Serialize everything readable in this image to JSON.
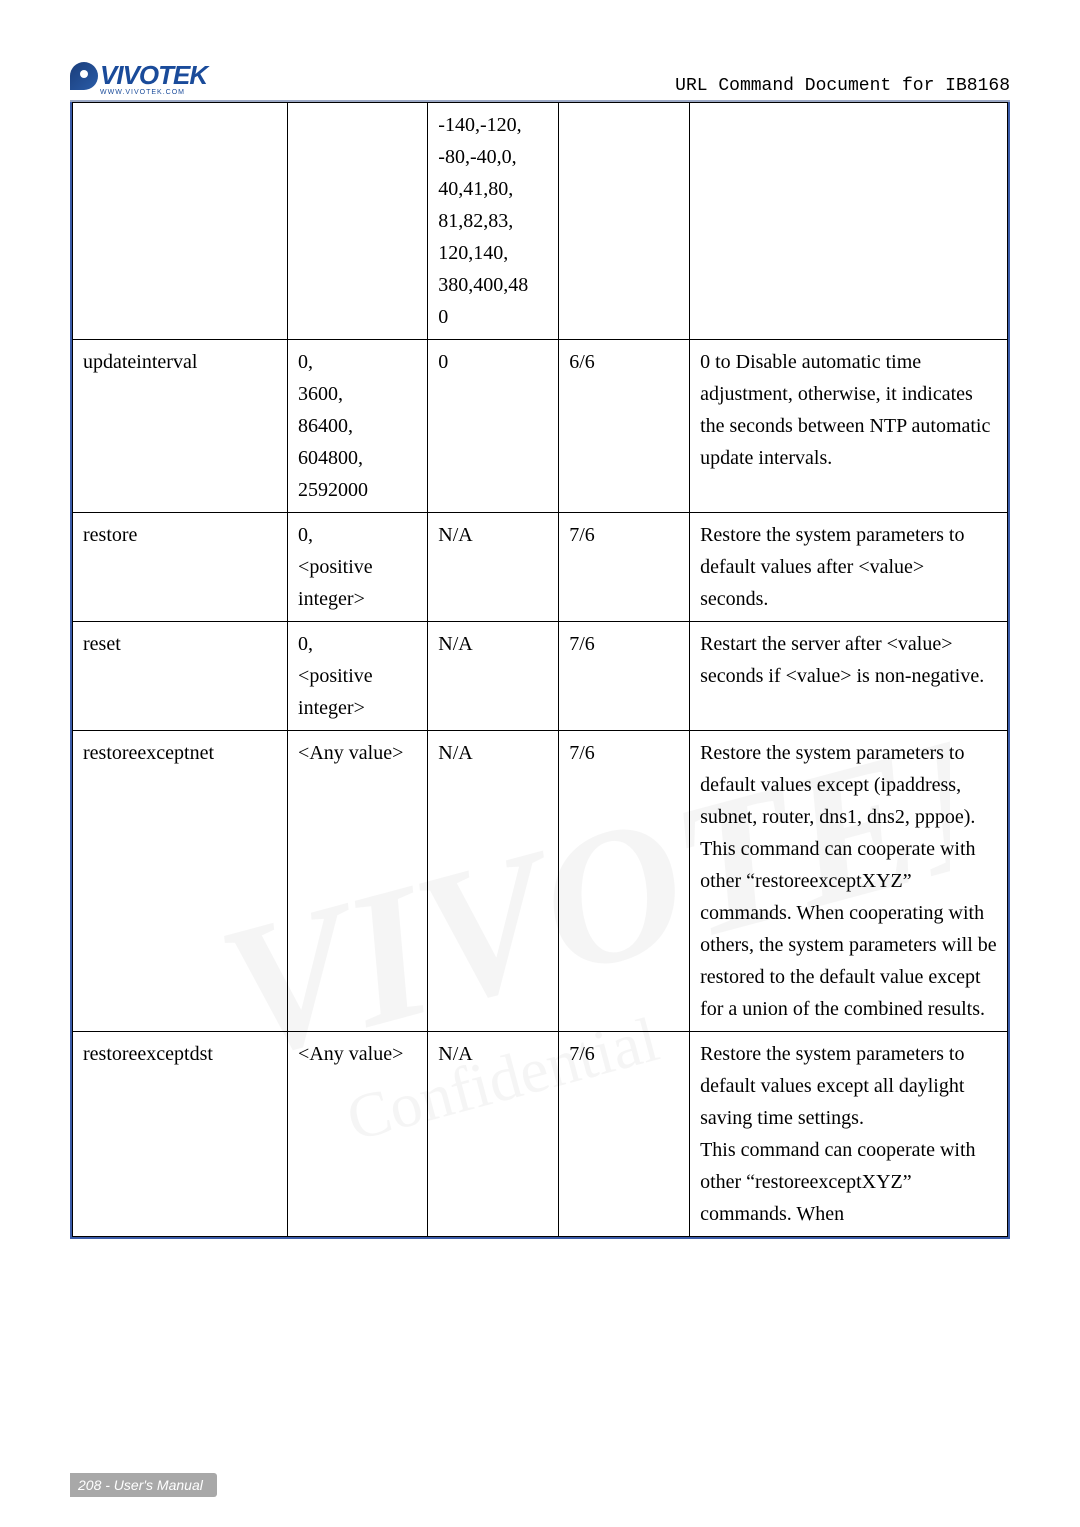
{
  "header": {
    "logo_text": "VIVOTEK",
    "logo_sub": "WWW.VIVOTEK.COM",
    "title": "URL Command Document for IB8168"
  },
  "rows": [
    {
      "name": "",
      "value": "",
      "default": "-140,-120,\n-80,-40,0,\n40,41,80,\n81,82,83,\n120,140,\n380,400,48\n0",
      "security": "",
      "desc": ""
    },
    {
      "name": "updateinterval",
      "value": "0,\n3600,\n86400,\n604800,\n2592000",
      "default": "0",
      "security": "6/6",
      "desc": "0 to Disable automatic time adjustment, otherwise, it indicates the seconds between NTP automatic update intervals."
    },
    {
      "name": "restore",
      "value": "0,\n<positive integer>",
      "default": "N/A",
      "security": "7/6",
      "desc": "Restore the system parameters to default values after <value> seconds."
    },
    {
      "name": "reset",
      "value": "0,\n<positive integer>",
      "default": "N/A",
      "security": "7/6",
      "desc": "Restart the server after <value> seconds if <value> is non-negative."
    },
    {
      "name": "restoreexceptnet",
      "value": "<Any value>",
      "default": "N/A",
      "security": "7/6",
      "desc": "Restore the system parameters to default values except (ipaddress, subnet, router, dns1, dns2, pppoe). This command can cooperate with other “restoreexceptXYZ” commands. When cooperating with others, the system parameters will be restored to the default value except for a union of the combined results."
    },
    {
      "name": "restoreexceptdst",
      "value": "<Any value>",
      "default": "N/A",
      "security": "7/6",
      "desc": "Restore the system parameters to default values except all daylight saving time settings.\nThis command can cooperate with other “restoreexceptXYZ” commands. When"
    }
  ],
  "footer": "208 - User's Manual",
  "colors": {
    "border_outer": "#3a5ba8",
    "border_inner": "#000000",
    "header_line": "#9ba8c4",
    "logo": "#1a4b9a",
    "footer_bg": "#a8a8a8",
    "text": "#000000"
  }
}
